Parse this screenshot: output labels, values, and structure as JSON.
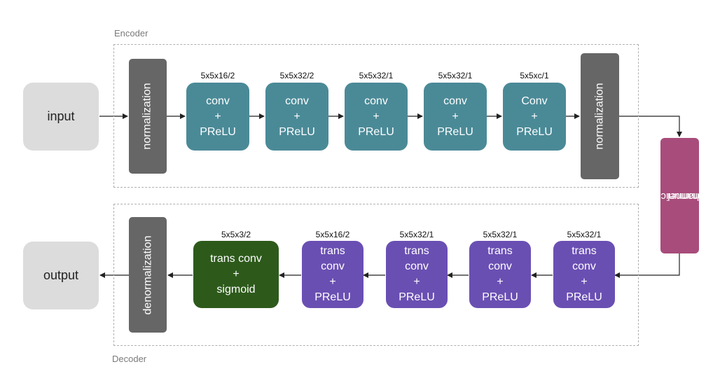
{
  "encoder": {
    "label": "Encoder",
    "input_label": "input",
    "norm_label": "normalization",
    "layers": [
      {
        "param": "5x5x16/2",
        "lines": [
          "conv",
          "+",
          "PReLU"
        ]
      },
      {
        "param": "5x5x32/2",
        "lines": [
          "conv",
          "+",
          "PReLU"
        ]
      },
      {
        "param": "5x5x32/1",
        "lines": [
          "conv",
          "+",
          "PReLU"
        ]
      },
      {
        "param": "5x5x32/1",
        "lines": [
          "conv",
          "+",
          "PReLU"
        ]
      },
      {
        "param": "5x5xc/1",
        "lines": [
          "Conv",
          "+",
          "PReLU"
        ]
      }
    ],
    "norm_out_label": "normalization"
  },
  "channel": {
    "lines": [
      "communication",
      "channel"
    ]
  },
  "decoder": {
    "label": "Decoder",
    "output_label": "output",
    "denorm_label": "denormalization",
    "layers": [
      {
        "param": "5x5x3/2",
        "lines": [
          "trans conv",
          "+",
          "sigmoid"
        ]
      },
      {
        "param": "5x5x16/2",
        "lines": [
          "trans",
          "conv",
          "+",
          "PReLU"
        ]
      },
      {
        "param": "5x5x32/1",
        "lines": [
          "trans",
          "conv",
          "+",
          "PReLU"
        ]
      },
      {
        "param": "5x5x32/1",
        "lines": [
          "trans",
          "conv",
          "+",
          "PReLU"
        ]
      },
      {
        "param": "5x5x32/1",
        "lines": [
          "trans",
          "conv",
          "+",
          "PReLU"
        ]
      }
    ]
  },
  "colors": {
    "encoder_layer": "#4a8a97",
    "decoder_layer": "#6a4fb3",
    "sigmoid_layer": "#2d5a1b",
    "normalization": "#666666",
    "channel": "#a84c7b",
    "io": "#dcdcdc"
  }
}
